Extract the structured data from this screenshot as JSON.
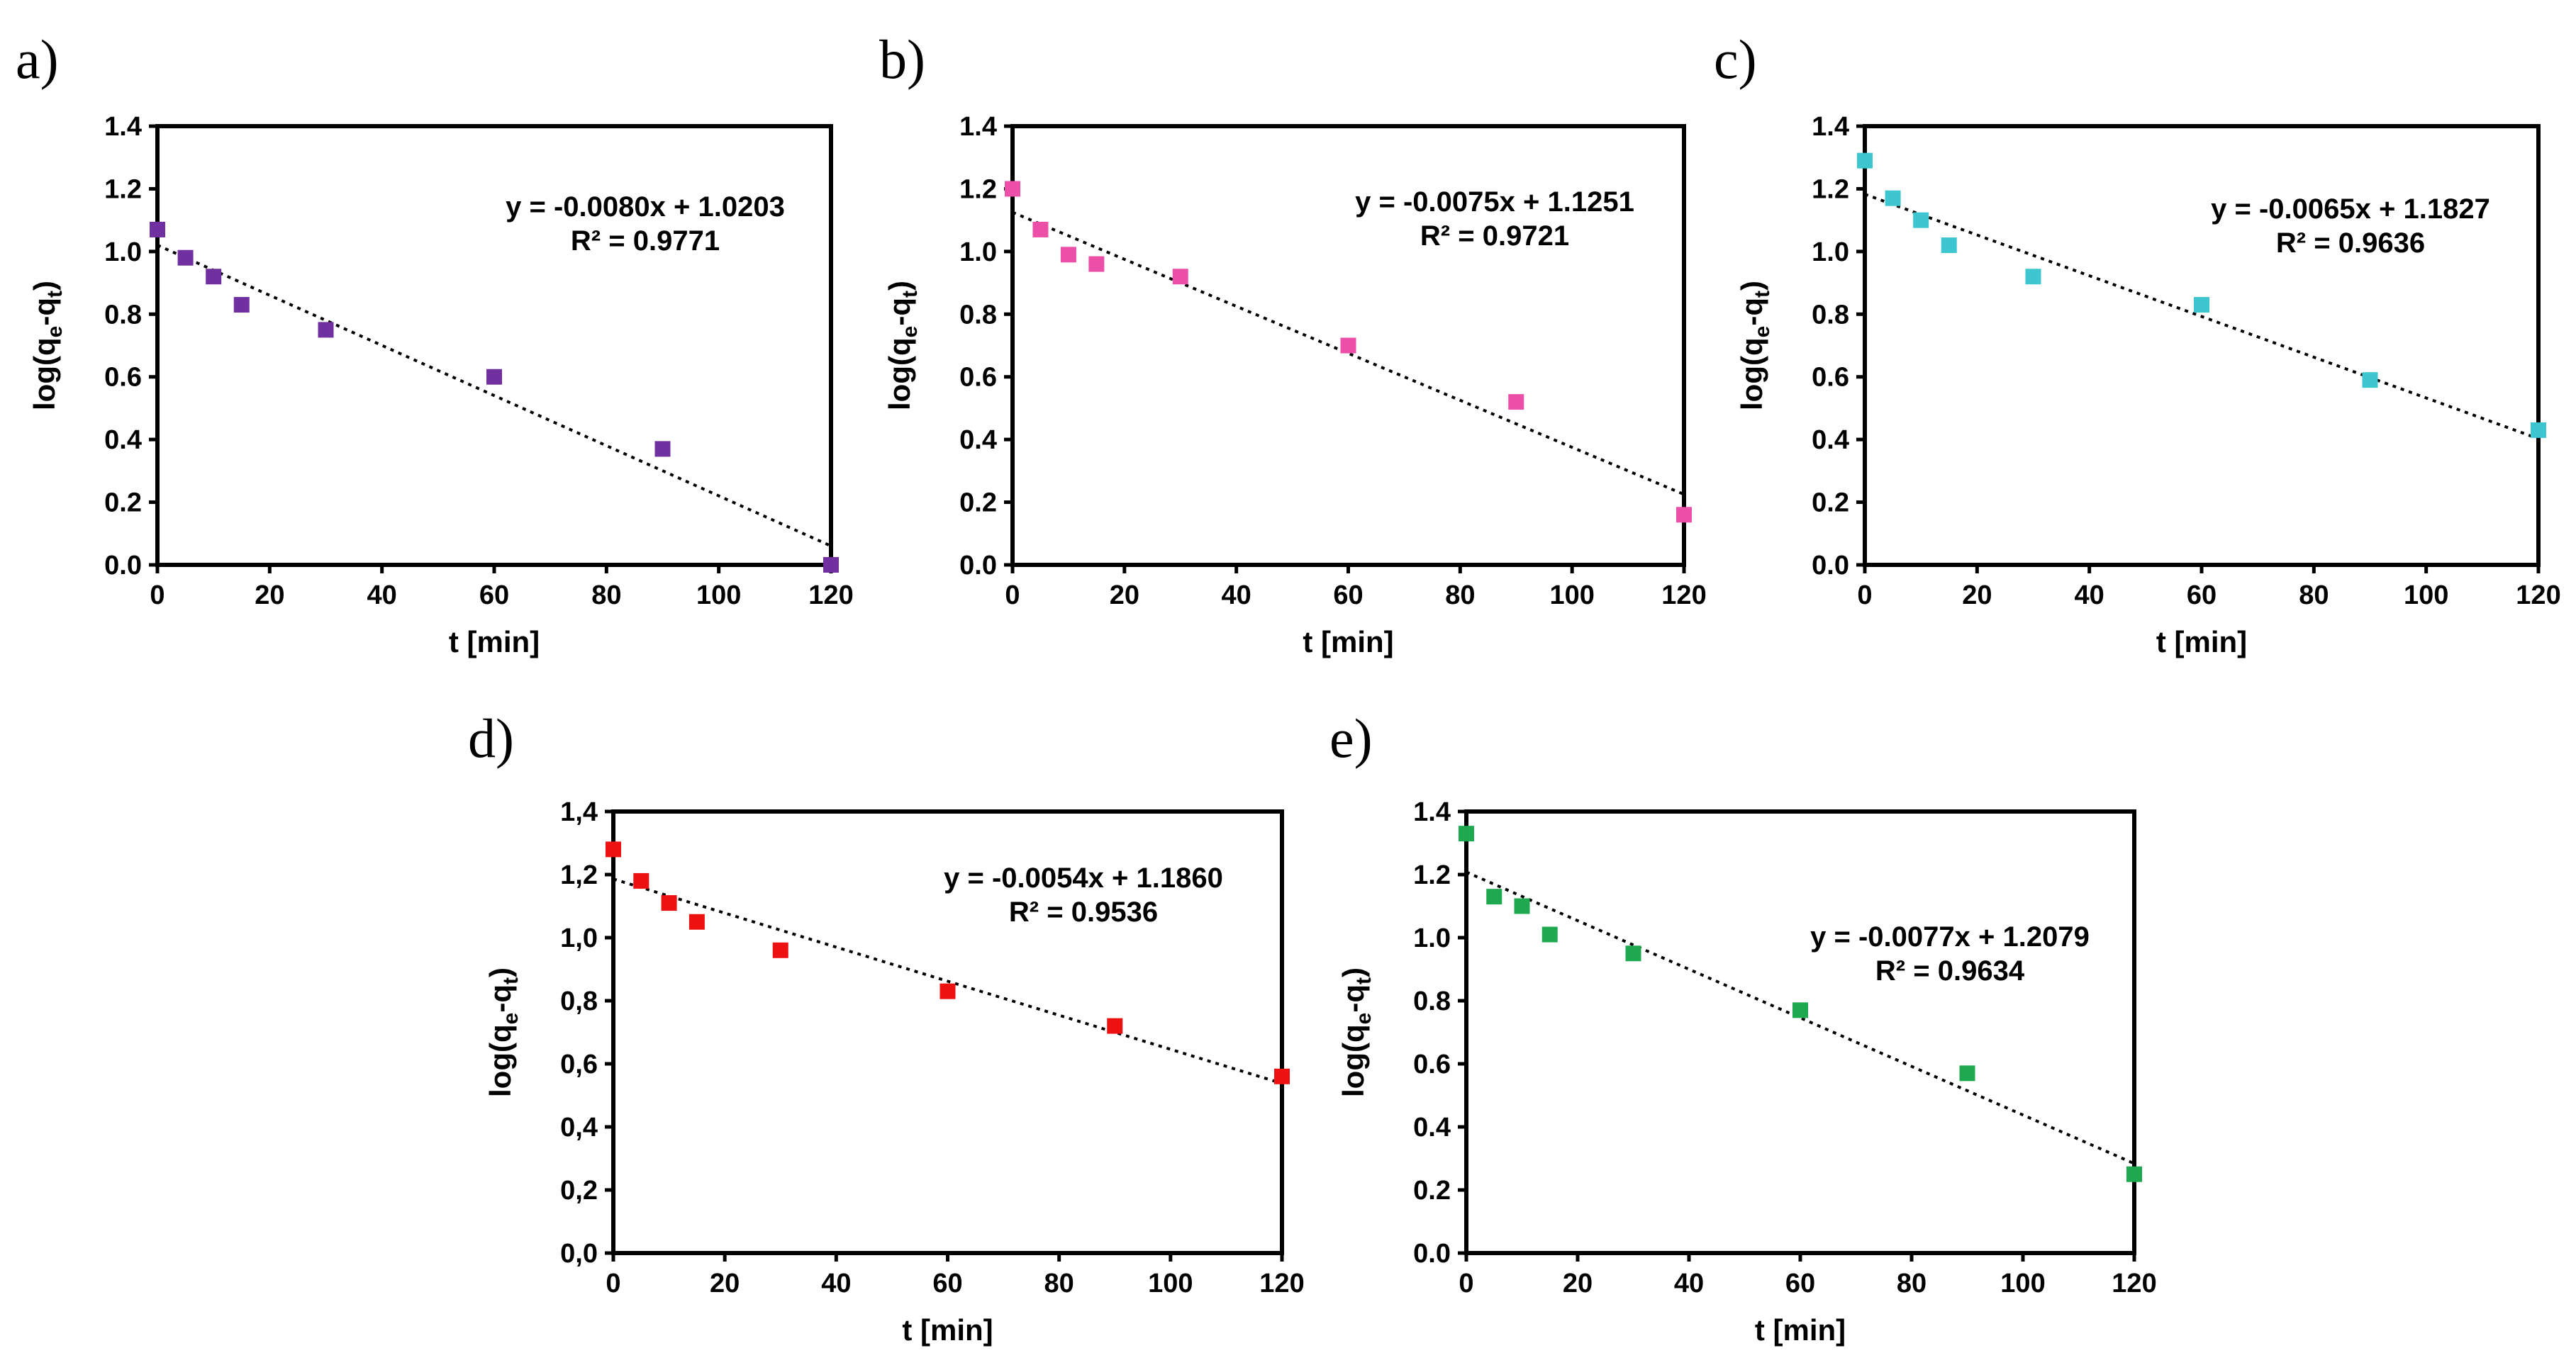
{
  "figure": {
    "charts": [
      {
        "label": "a)",
        "equation": "y = -0.0080x + 1.0203",
        "r_squared": "R² = 0.9771",
        "color": "#7030a0"
      },
      {
        "label": "b)",
        "equation": "y = -0.0075x + 1.1251",
        "r_squared": "R² = 0.9721",
        "color": "#ec4fa8"
      },
      {
        "label": "c)",
        "equation": "y = -0.0065x + 1.1827",
        "r_squared": "R² = 0.9636",
        "color": "#3ec6d0"
      },
      {
        "label": "d)",
        "equation": "y = -0.0054x + 1.1860",
        "r_squared": "R² = 0.9536",
        "color": "#ee1111"
      },
      {
        "label": "e)",
        "equation": "y = -0.0077x + 1.2079",
        "r_squared": "R² = 0.9634",
        "color": "#1ea84f"
      }
    ]
  },
  "chart_data": [
    {
      "type": "scatter",
      "panel": "a)",
      "xlabel": "t [min]",
      "ylabel": "log(q_e-q_t)",
      "xlim": [
        0,
        120
      ],
      "ylim": [
        0.0,
        1.4
      ],
      "xticks": [
        "0",
        "20",
        "40",
        "60",
        "80",
        "100",
        "120"
      ],
      "yticks": [
        "0.0",
        "0.2",
        "0.4",
        "0.6",
        "0.8",
        "1.0",
        "1.2",
        "1.4"
      ],
      "x": [
        0,
        5,
        10,
        15,
        30,
        60,
        90,
        120
      ],
      "y": [
        1.07,
        0.98,
        0.92,
        0.83,
        0.75,
        0.6,
        0.37,
        0.0
      ],
      "trendline": {
        "slope": -0.008,
        "intercept": 1.0203
      },
      "annotation": [
        "y = -0.0080x + 1.0203",
        "R² = 0.9771"
      ]
    },
    {
      "type": "scatter",
      "panel": "b)",
      "xlabel": "t [min]",
      "ylabel": "log(q_e-q_t)",
      "xlim": [
        0,
        120
      ],
      "ylim": [
        0.0,
        1.4
      ],
      "xticks": [
        "0",
        "20",
        "40",
        "60",
        "80",
        "100",
        "120"
      ],
      "yticks": [
        "0.0",
        "0.2",
        "0.4",
        "0.6",
        "0.8",
        "1.0",
        "1.2",
        "1.4"
      ],
      "x": [
        0,
        5,
        10,
        15,
        30,
        60,
        90,
        120
      ],
      "y": [
        1.2,
        1.07,
        0.99,
        0.96,
        0.92,
        0.7,
        0.52,
        0.16
      ],
      "trendline": {
        "slope": -0.0075,
        "intercept": 1.1251
      },
      "annotation": [
        "y = -0.0075x + 1.1251",
        "R² = 0.9721"
      ]
    },
    {
      "type": "scatter",
      "panel": "c)",
      "xlabel": "t [min]",
      "ylabel": "log(q_e-q_t)",
      "xlim": [
        0,
        120
      ],
      "ylim": [
        0.0,
        1.4
      ],
      "xticks": [
        "0",
        "20",
        "40",
        "60",
        "80",
        "100",
        "120"
      ],
      "yticks": [
        "0.0",
        "0.2",
        "0.4",
        "0.6",
        "0.8",
        "1.0",
        "1.2",
        "1.4"
      ],
      "x": [
        0,
        5,
        10,
        15,
        30,
        60,
        90,
        120
      ],
      "y": [
        1.29,
        1.17,
        1.1,
        1.02,
        0.92,
        0.83,
        0.59,
        0.43
      ],
      "trendline": {
        "slope": -0.0065,
        "intercept": 1.1827
      },
      "annotation": [
        "y = -0.0065x + 1.1827",
        "R² = 0.9636"
      ]
    },
    {
      "type": "scatter",
      "panel": "d)",
      "xlabel": "t [min]",
      "ylabel": "log(q_e-q_t)",
      "xlim": [
        0,
        120
      ],
      "ylim": [
        0.0,
        1.4
      ],
      "xticks": [
        "0",
        "20",
        "40",
        "60",
        "80",
        "100",
        "120"
      ],
      "yticks": [
        "0,0",
        "0,2",
        "0,4",
        "0,6",
        "0,8",
        "1,0",
        "1,2",
        "1,4"
      ],
      "x": [
        0,
        5,
        10,
        15,
        30,
        60,
        90,
        120
      ],
      "y": [
        1.28,
        1.18,
        1.11,
        1.05,
        0.96,
        0.83,
        0.72,
        0.56
      ],
      "trendline": {
        "slope": -0.0054,
        "intercept": 1.186
      },
      "annotation": [
        "y = -0.0054x + 1.1860",
        "R² = 0.9536"
      ]
    },
    {
      "type": "scatter",
      "panel": "e)",
      "xlabel": "t [min]",
      "ylabel": "log(q_e-q_t)",
      "xlim": [
        0,
        120
      ],
      "ylim": [
        0.0,
        1.4
      ],
      "xticks": [
        "0",
        "20",
        "40",
        "60",
        "80",
        "100",
        "120"
      ],
      "yticks": [
        "0.0",
        "0.2",
        "0.4",
        "0.6",
        "0.8",
        "1.0",
        "1.2",
        "1.4"
      ],
      "x": [
        0,
        5,
        10,
        15,
        30,
        60,
        90,
        120
      ],
      "y": [
        1.33,
        1.13,
        1.1,
        1.01,
        0.95,
        0.77,
        0.57,
        0.25
      ],
      "trendline": {
        "slope": -0.0077,
        "intercept": 1.2079
      },
      "annotation": [
        "y = -0.0077x + 1.2079",
        "R² = 0.9634"
      ]
    }
  ]
}
